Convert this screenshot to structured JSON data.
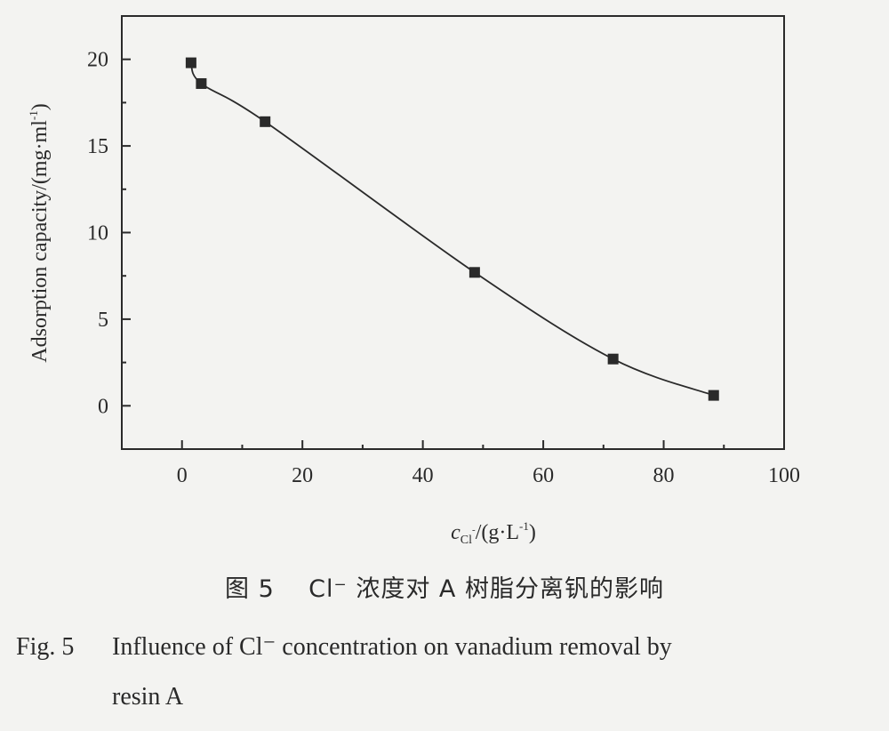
{
  "chart_data": {
    "type": "line",
    "xlabel_main": "c",
    "xlabel_sub": "Cl",
    "xlabel_sub_sup": "-",
    "xlabel_unit": "/(g·L",
    "xlabel_unit_sup": "-1",
    "xlabel_unit_close": ")",
    "ylabel": "Adsorption capacity/(mg·ml",
    "ylabel_sup": "-1",
    "ylabel_close": ")",
    "xlim": [
      -10,
      100
    ],
    "ylim": [
      -2.5,
      22.5
    ],
    "xticks": [
      0,
      20,
      40,
      60,
      80,
      100
    ],
    "yticks": [
      0,
      5,
      10,
      15,
      20
    ],
    "series": [
      {
        "marker": "square",
        "color": "#2a2a2a",
        "x": [
          1.5,
          3.2,
          13.8,
          48.6,
          71.6,
          88.3
        ],
        "y": [
          19.8,
          18.6,
          16.4,
          7.7,
          2.7,
          0.6
        ]
      }
    ]
  },
  "caption": {
    "cn_fig": "图 5",
    "cn_text": "Cl⁻ 浓度对 A 树脂分离钒的影响",
    "en_fig": "Fig. 5",
    "en_line1": "Influence of Cl⁻ concentration on vanadium removal by",
    "en_line2": "resin A"
  }
}
